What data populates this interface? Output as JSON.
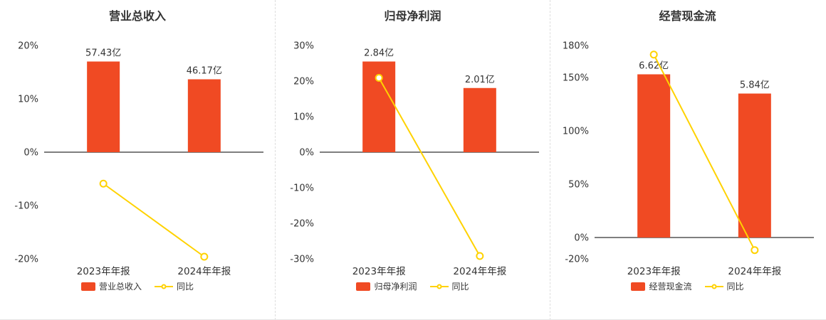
{
  "colors": {
    "bar": "#F04A23",
    "line": "#FFD200",
    "zero_line": "#555555",
    "axis_text": "#333333",
    "separator": "#DDDDDD",
    "background": "#FFFFFF"
  },
  "chart_data": [
    {
      "type": "bar",
      "title": "营业总收入",
      "categories": [
        "2023年年报",
        "2024年年报"
      ],
      "bar_series": {
        "name": "营业总收入",
        "unit": "亿",
        "values": [
          57.43,
          46.17
        ],
        "labels": [
          "57.43亿",
          "46.17亿"
        ]
      },
      "line_series": {
        "name": "同比",
        "unit": "%",
        "values": [
          -5.9,
          -19.6
        ]
      },
      "ylim": [
        -20,
        20
      ],
      "yticks": [
        20,
        10,
        0,
        -10,
        -20
      ],
      "tick_suffix": "%",
      "grid": "off",
      "legend_position": "bottom"
    },
    {
      "type": "bar",
      "title": "归母净利润",
      "categories": [
        "2023年年报",
        "2024年年报"
      ],
      "bar_series": {
        "name": "归母净利润",
        "unit": "亿",
        "values": [
          2.84,
          2.01
        ],
        "labels": [
          "2.84亿",
          "2.01亿"
        ]
      },
      "line_series": {
        "name": "同比",
        "unit": "%",
        "values": [
          20.9,
          -29.2
        ]
      },
      "ylim": [
        -30,
        30
      ],
      "yticks": [
        30,
        20,
        10,
        0,
        -10,
        -20,
        -30
      ],
      "tick_suffix": "%",
      "grid": "off",
      "legend_position": "bottom"
    },
    {
      "type": "bar",
      "title": "经营现金流",
      "categories": [
        "2023年年报",
        "2024年年报"
      ],
      "bar_series": {
        "name": "经营现金流",
        "unit": "亿",
        "values": [
          6.62,
          5.84
        ],
        "labels": [
          "6.62亿",
          "5.84亿"
        ]
      },
      "line_series": {
        "name": "同比",
        "unit": "%",
        "values": [
          171.5,
          -11.8
        ]
      },
      "ylim": [
        -20,
        180
      ],
      "yticks": [
        180,
        150,
        100,
        50,
        0,
        -20
      ],
      "tick_suffix": "%",
      "grid": "off",
      "legend_position": "bottom"
    }
  ]
}
